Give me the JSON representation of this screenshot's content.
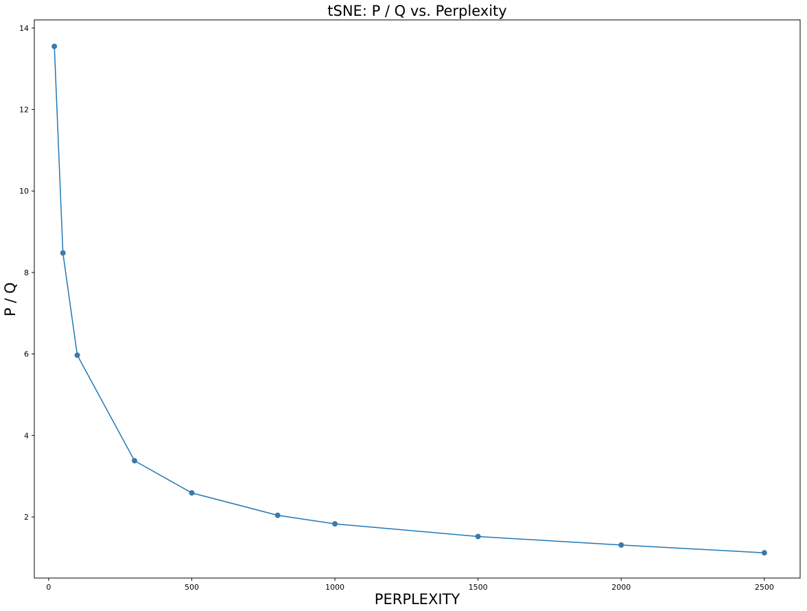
{
  "chart_data": {
    "type": "line",
    "title": "tSNE: P / Q vs. Perplexity",
    "xlabel": "PERPLEXITY",
    "ylabel": "P / Q",
    "xlim": [
      -50,
      2625
    ],
    "ylim": [
      0.5,
      14.2
    ],
    "grid": false,
    "x_ticks": [
      0,
      500,
      1000,
      1500,
      2000,
      2500
    ],
    "y_ticks": [
      2,
      4,
      6,
      8,
      10,
      12,
      14
    ],
    "series": [
      {
        "name": "P / Q",
        "color": "#1f77b4",
        "marker_color": "#3c7aaa",
        "x": [
          20,
          50,
          100,
          300,
          500,
          800,
          1000,
          1500,
          2000,
          2500
        ],
        "y": [
          13.55,
          8.48,
          5.97,
          3.38,
          2.59,
          2.04,
          1.83,
          1.52,
          1.31,
          1.12
        ]
      }
    ]
  }
}
